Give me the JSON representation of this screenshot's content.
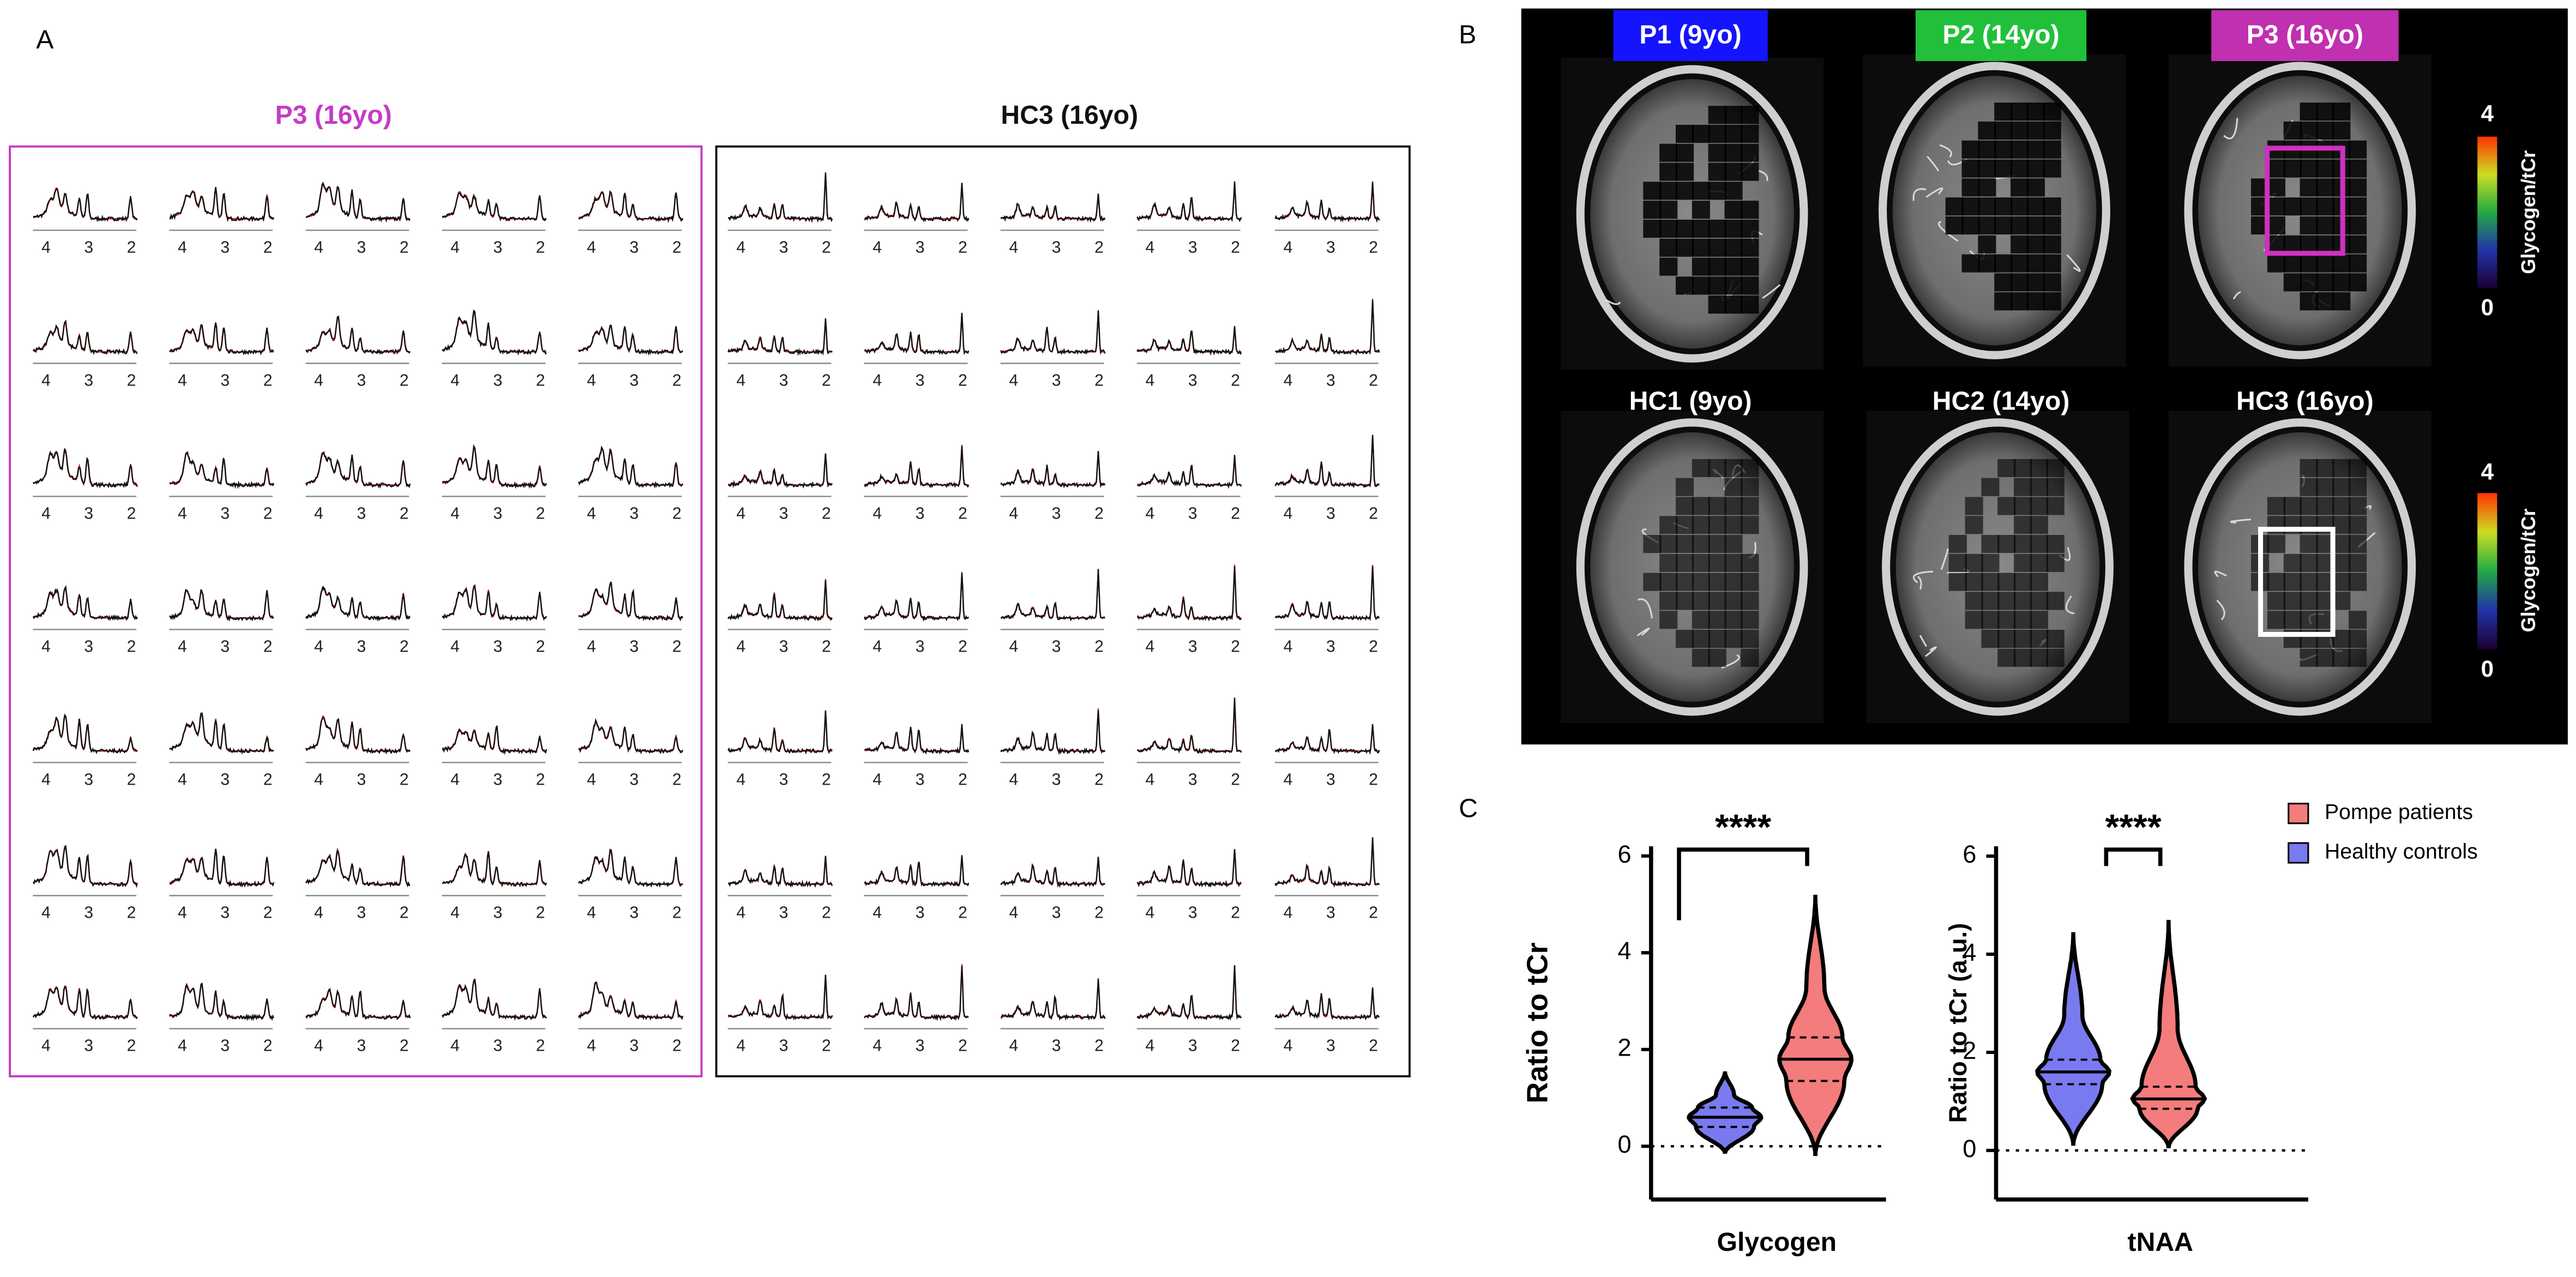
{
  "panel_labels": [
    "A",
    "B",
    "C"
  ],
  "panel_a": {
    "patient_title": "P3 (16yo)",
    "control_title": "HC3 (16yo)",
    "ppm_ticks": [
      4,
      3,
      2
    ]
  },
  "panel_b": {
    "patient_labels": [
      "P1 (9yo)",
      "P2 (14yo)",
      "P3 (16yo)"
    ],
    "control_labels": [
      "HC1 (9yo)",
      "HC2 (14yo)",
      "HC3 (16yo)"
    ],
    "colorbar": {
      "label": "Glycogen/tCr",
      "max": 4,
      "min": 0
    }
  },
  "chart_data": [
    {
      "type": "violin",
      "ylabel": "Ratio to tCr",
      "xlabel": "Glycogen",
      "annotation": "****",
      "ylim": [
        -1.1,
        6.2
      ],
      "yticks": [
        0,
        2,
        4,
        6
      ],
      "series": [
        {
          "color": "#f47c7c",
          "min": -0.2,
          "q1": 1.35,
          "median": 1.8,
          "q3": 2.25,
          "max": 5.2
        },
        {
          "color": "#7a7af0",
          "min": -0.15,
          "q1": 0.4,
          "median": 0.6,
          "q3": 0.8,
          "max": 1.55
        }
      ]
    },
    {
      "type": "violin",
      "ylabel": "Ratio to tCr (a.u.)",
      "xlabel": "tNAA",
      "annotation": "****",
      "ylim": [
        -1.0,
        6.2
      ],
      "yticks": [
        0,
        2,
        4,
        6
      ],
      "legend": "upper right",
      "series": [
        {
          "name": "Pompe patients",
          "color": "#f47c7c",
          "min": 0.05,
          "q1": 0.85,
          "median": 1.05,
          "q3": 1.3,
          "max": 4.7
        },
        {
          "name": "Healthy controls",
          "color": "#7a7af0",
          "min": 0.1,
          "q1": 1.35,
          "median": 1.6,
          "q3": 1.85,
          "max": 4.45
        }
      ]
    }
  ]
}
